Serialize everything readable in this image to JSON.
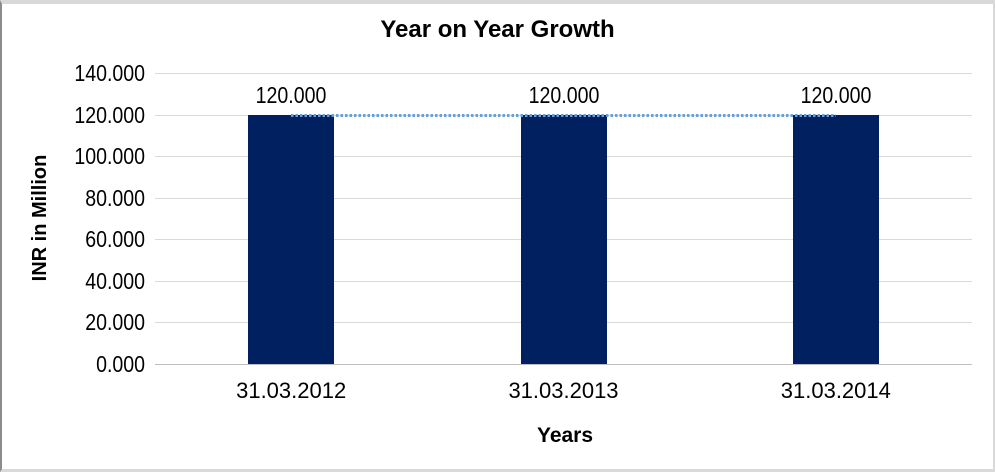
{
  "chart": {
    "title": "Year on Year Growth",
    "y_axis_title": "INR in Million",
    "x_axis_title": "Years"
  },
  "chart_data": {
    "type": "bar",
    "title": "Year on Year Growth",
    "xlabel": "Years",
    "ylabel": "INR in Million",
    "categories": [
      "31.03.2012",
      "31.03.2013",
      "31.03.2014"
    ],
    "series": [
      {
        "name": "INR in Million",
        "values": [
          120.0,
          120.0,
          120.0
        ]
      }
    ],
    "data_labels": [
      "120.000",
      "120.000",
      "120.000"
    ],
    "ylim": [
      0,
      140
    ],
    "ytick_step": 20,
    "ytick_labels": [
      "140.000",
      "120.000",
      "100.000",
      "80.000",
      "60.000",
      "40.000",
      "20.000",
      "0.000"
    ],
    "grid": "horizontal",
    "legend": "none",
    "trendline": {
      "style": "dotted",
      "value": 120
    },
    "colors": {
      "bar": "#002060",
      "trendline": "#6a9fd8",
      "gridline": "#d9d9d9",
      "baseline": "#bfbfbf",
      "text": "#000000"
    }
  }
}
